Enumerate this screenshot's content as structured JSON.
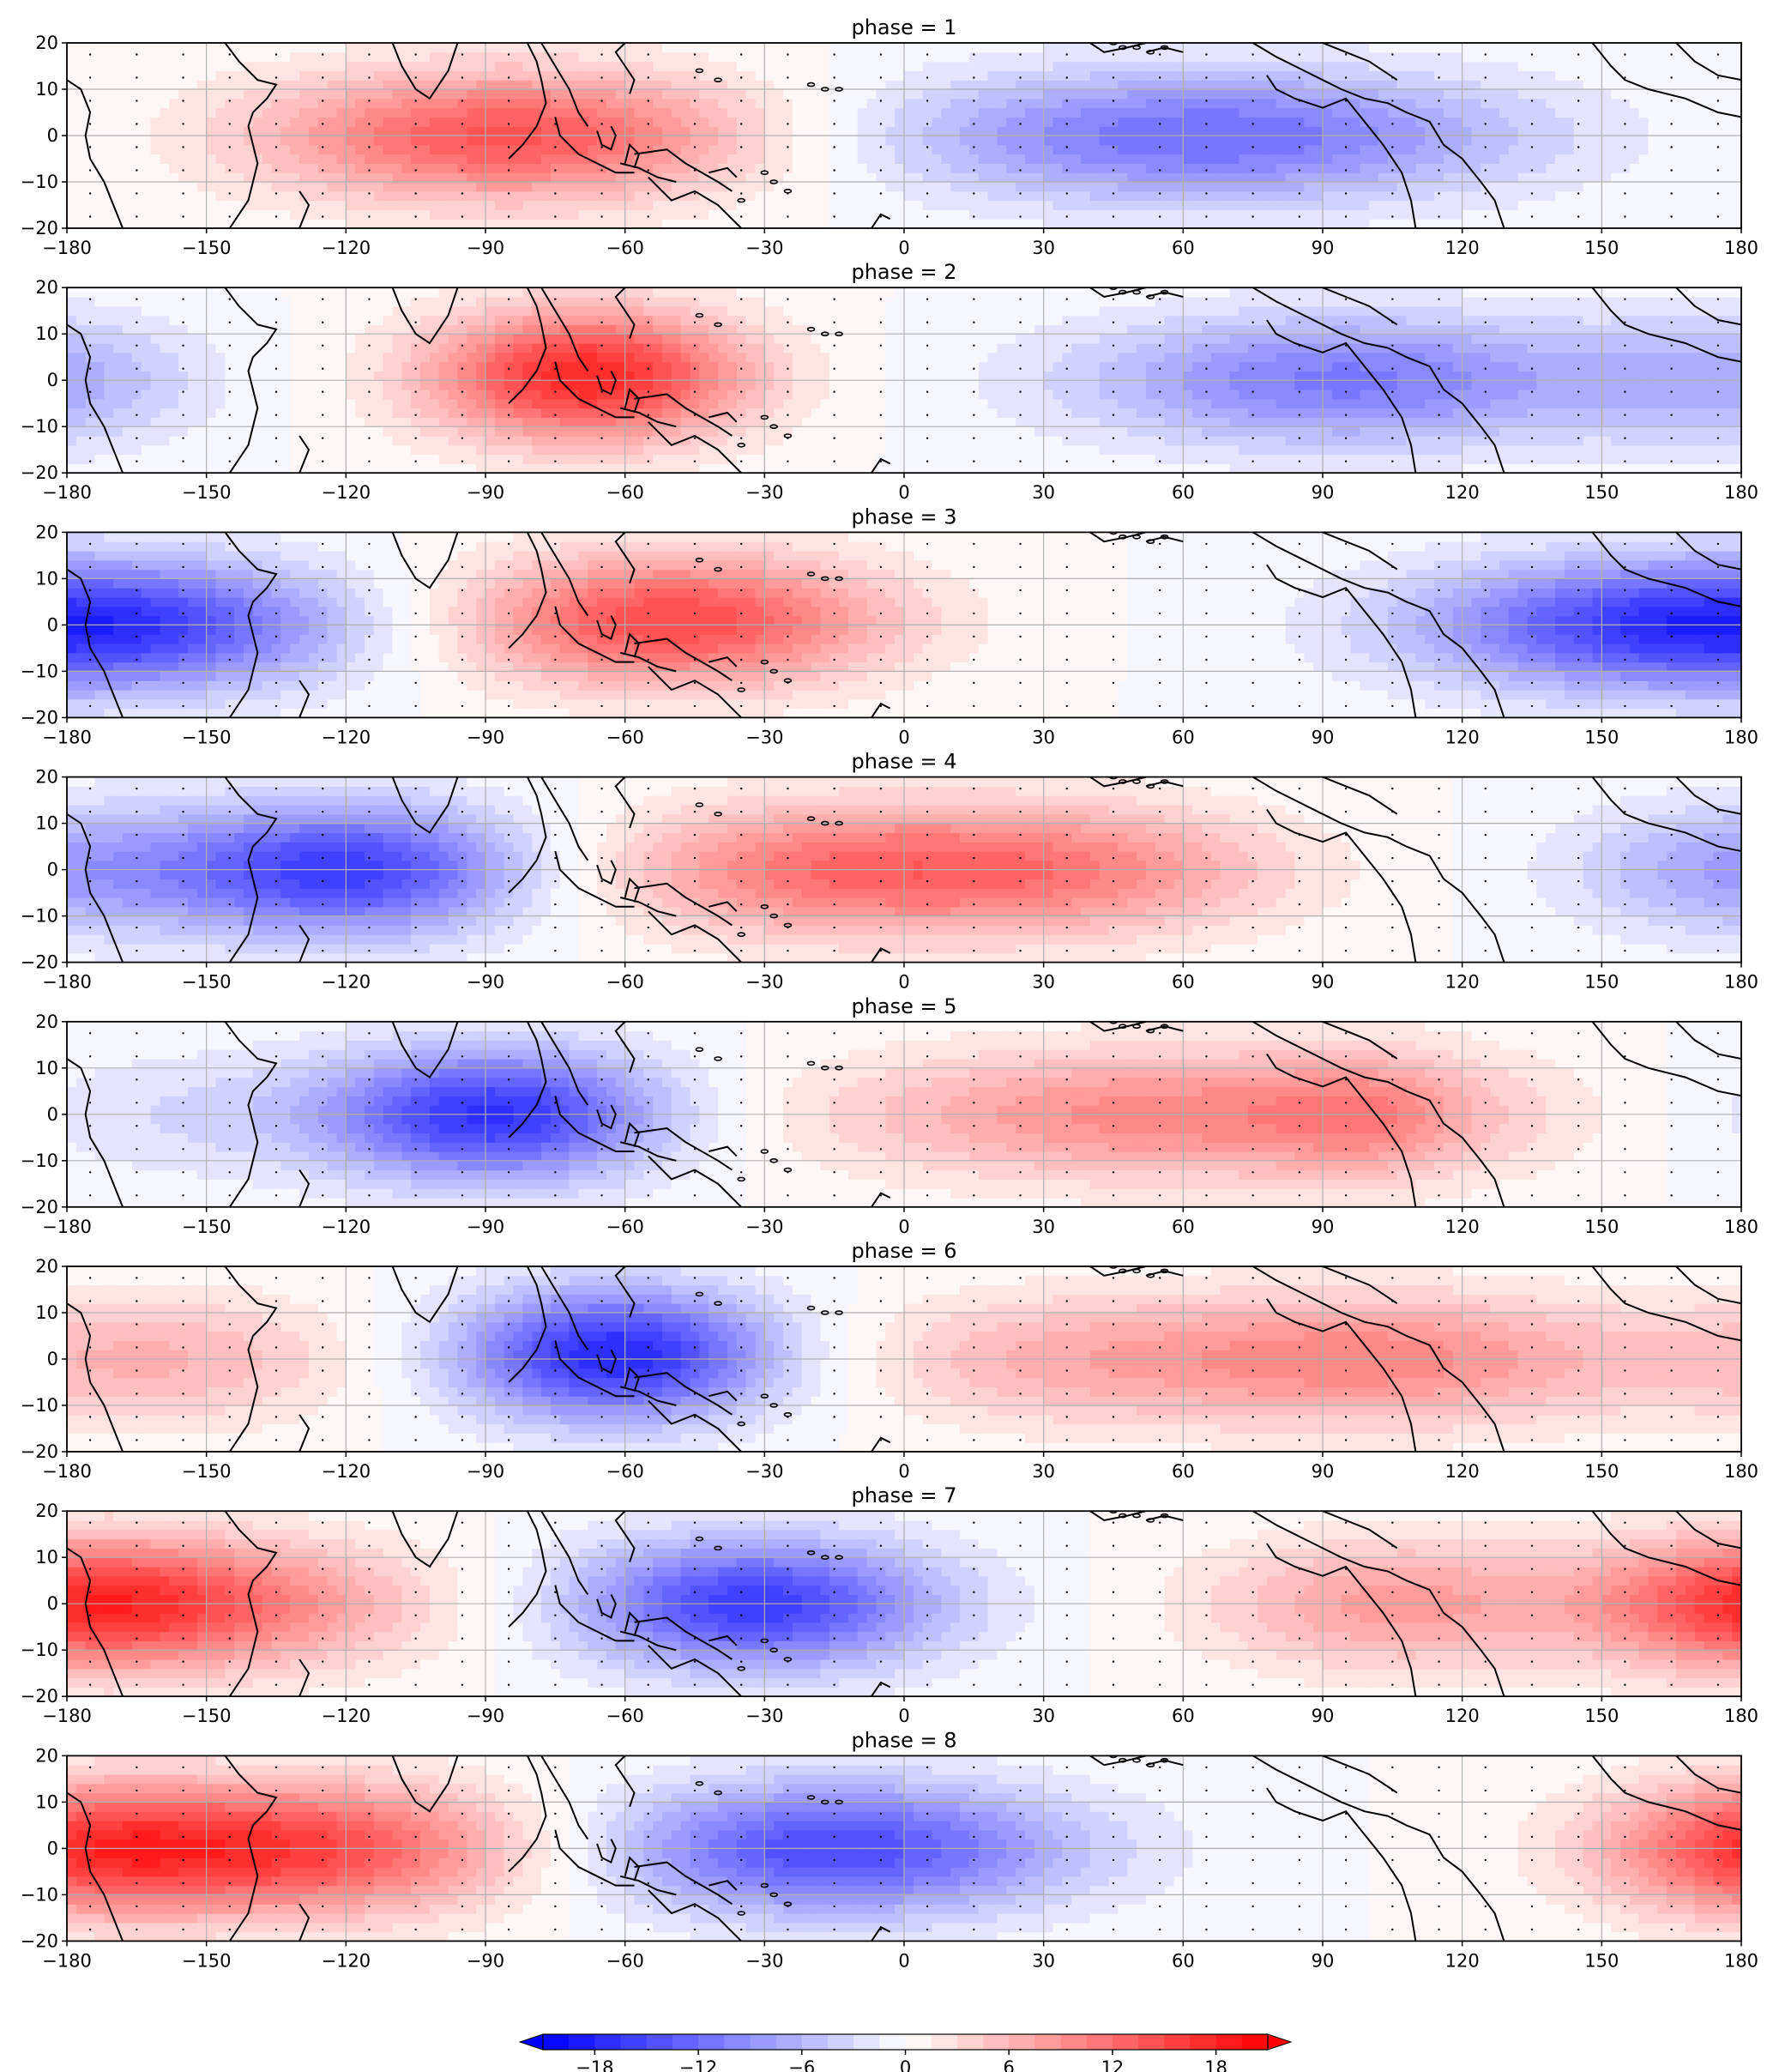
{
  "chart_data": {
    "type": "heatmap",
    "panel_title_prefix": "phase = ",
    "xlim": [
      -180,
      180
    ],
    "ylim": [
      -20,
      20
    ],
    "xticks": [
      -180,
      -150,
      -120,
      -90,
      -60,
      -30,
      0,
      30,
      60,
      90,
      120,
      150,
      180
    ],
    "yticks": [
      -20,
      -10,
      0,
      10,
      20
    ],
    "grid": true,
    "overlay": "wind vector arrows and coastlines",
    "colorbar": {
      "ticks": [
        -18,
        -12,
        -6,
        0,
        6,
        12,
        18
      ],
      "levels": [
        -21,
        -19.5,
        -18,
        -16.5,
        -15,
        -13.5,
        -12,
        -10.5,
        -9,
        -7.5,
        -6,
        -4.5,
        -3,
        -1.5,
        0,
        1.5,
        3,
        4.5,
        6,
        7.5,
        9,
        10.5,
        12,
        13.5,
        15,
        16.5,
        18,
        19.5,
        21
      ],
      "extend": "both",
      "colormap": "bwr",
      "colors": {
        "negative": "#0000ff",
        "zero": "#ffffff",
        "positive": "#ff0000"
      }
    },
    "panels": [
      {
        "phase": 1,
        "blobs": [
          {
            "lon": -85,
            "lat": 0,
            "amp": 14,
            "sx": 38,
            "sy": 10
          },
          {
            "lon": 65,
            "lat": 0,
            "amp": -12,
            "sx": 48,
            "sy": 10
          }
        ]
      },
      {
        "phase": 2,
        "blobs": [
          {
            "lon": -68,
            "lat": 1,
            "amp": 18,
            "sx": 24,
            "sy": 10
          },
          {
            "lon": 95,
            "lat": 0,
            "amp": -11,
            "sx": 40,
            "sy": 10
          },
          {
            "lon": 178,
            "lat": 0,
            "amp": -6,
            "sx": 22,
            "sy": 10
          }
        ]
      },
      {
        "phase": 3,
        "blobs": [
          {
            "lon": -50,
            "lat": 1,
            "amp": 15,
            "sx": 32,
            "sy": 10
          },
          {
            "lon": -165,
            "lat": 0,
            "amp": -13,
            "sx": 35,
            "sy": 10
          },
          {
            "lon": 150,
            "lat": 0,
            "amp": -10,
            "sx": 35,
            "sy": 10
          }
        ]
      },
      {
        "phase": 4,
        "blobs": [
          {
            "lon": -120,
            "lat": 0,
            "amp": -16,
            "sx": 28,
            "sy": 10
          },
          {
            "lon": -10,
            "lat": 0,
            "amp": 12,
            "sx": 38,
            "sy": 10
          },
          {
            "lon": 45,
            "lat": 0,
            "amp": 6,
            "sx": 30,
            "sy": 10
          },
          {
            "lon": 178,
            "lat": 0,
            "amp": -7,
            "sx": 25,
            "sy": 10
          }
        ]
      },
      {
        "phase": 5,
        "blobs": [
          {
            "lon": -88,
            "lat": 0,
            "amp": -17,
            "sx": 26,
            "sy": 10
          },
          {
            "lon": 60,
            "lat": 0,
            "amp": 10,
            "sx": 52,
            "sy": 10
          },
          {
            "lon": 100,
            "lat": 0,
            "amp": 4,
            "sx": 15,
            "sy": 10
          },
          {
            "lon": -160,
            "lat": 0,
            "amp": -3,
            "sx": 30,
            "sy": 10
          }
        ]
      },
      {
        "phase": 6,
        "blobs": [
          {
            "lon": -62,
            "lat": 1,
            "amp": -18,
            "sx": 24,
            "sy": 10
          },
          {
            "lon": 100,
            "lat": 0,
            "amp": 10,
            "sx": 38,
            "sy": 10
          },
          {
            "lon": 30,
            "lat": 0,
            "amp": 5,
            "sx": 30,
            "sy": 10
          },
          {
            "lon": -160,
            "lat": 0,
            "amp": 6,
            "sx": 30,
            "sy": 10
          }
        ]
      },
      {
        "phase": 7,
        "blobs": [
          {
            "lon": -32,
            "lat": 0,
            "amp": -16,
            "sx": 28,
            "sy": 10
          },
          {
            "lon": -155,
            "lat": 0,
            "amp": 12,
            "sx": 35,
            "sy": 10
          },
          {
            "lon": 105,
            "lat": 0,
            "amp": 8,
            "sx": 28,
            "sy": 10
          },
          {
            "lon": 180,
            "lat": 0,
            "amp": 8,
            "sx": 22,
            "sy": 10
          }
        ]
      },
      {
        "phase": 8,
        "blobs": [
          {
            "lon": -135,
            "lat": 0,
            "amp": 16,
            "sx": 38,
            "sy": 10
          },
          {
            "lon": -15,
            "lat": 0,
            "amp": -15,
            "sx": 36,
            "sy": 10
          },
          {
            "lon": 180,
            "lat": 0,
            "amp": 9,
            "sx": 22,
            "sy": 10
          }
        ]
      }
    ]
  }
}
